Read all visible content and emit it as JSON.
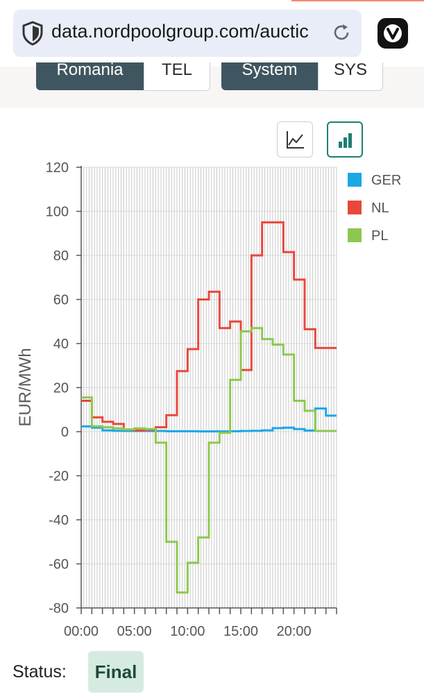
{
  "browser": {
    "url": "data.nordpoolgroup.com/auctic",
    "icons": [
      "shield-icon",
      "reload-icon",
      "vivaldi-logo-icon"
    ]
  },
  "toggles": {
    "left": {
      "selected": "Romania",
      "other": "TEL"
    },
    "right": {
      "selected": "System",
      "other": "SYS"
    }
  },
  "view_buttons": {
    "line_chart_icon": "line-chart-icon",
    "bar_chart_icon": "bar-chart-icon",
    "active": "bar",
    "active_color": "#1b7f72"
  },
  "status": {
    "label": "Status:",
    "value": "Final"
  },
  "colors": {
    "GER": "#1aa7e6",
    "NL": "#e8473c",
    "PL": "#8cc850"
  },
  "chart_data": {
    "type": "line",
    "step": true,
    "ylabel": "EUR/MWh",
    "xlabel": "",
    "ylim": [
      -80,
      120
    ],
    "yticks": [
      120,
      100,
      80,
      60,
      40,
      20,
      0,
      -20,
      -40,
      -60,
      -80
    ],
    "xlim": [
      0,
      24
    ],
    "xticks": [
      {
        "value": 0,
        "label": "00:00"
      },
      {
        "value": 5,
        "label": "05:00"
      },
      {
        "value": 10,
        "label": "10:00"
      },
      {
        "value": 15,
        "label": "15:00"
      },
      {
        "value": 20,
        "label": "20:00"
      }
    ],
    "grid": true,
    "legend": "right",
    "x": [
      0,
      1,
      2,
      3,
      4,
      5,
      6,
      7,
      8,
      9,
      10,
      11,
      12,
      13,
      14,
      15,
      16,
      17,
      18,
      19,
      20,
      21,
      22,
      23
    ],
    "series": [
      {
        "name": "GER",
        "values": [
          2.4,
          1.8,
          0.6,
          0.4,
          0.3,
          0.3,
          0.3,
          0.3,
          0.2,
          0.2,
          0.2,
          0.1,
          0.1,
          0.1,
          0.2,
          0.3,
          0.4,
          0.6,
          1.6,
          1.8,
          1.2,
          0.5,
          10.5,
          7.3
        ]
      },
      {
        "name": "NL",
        "values": [
          14.0,
          6.5,
          4.5,
          3.5,
          1.0,
          0.5,
          0.8,
          2.0,
          7.5,
          27.5,
          37.5,
          60.0,
          63.5,
          47.0,
          50.0,
          28.0,
          80.0,
          95.0,
          95.0,
          81.5,
          69.0,
          46.5,
          38.0,
          38.0
        ]
      },
      {
        "name": "PL",
        "values": [
          15.5,
          2.5,
          2.0,
          1.5,
          1.0,
          1.5,
          1.2,
          -5.0,
          -50.0,
          -73.0,
          -59.5,
          -48.0,
          -5.0,
          -0.5,
          23.5,
          45.5,
          47.0,
          42.0,
          39.5,
          35.0,
          14.0,
          9.5,
          0.3,
          0.3
        ]
      }
    ]
  }
}
